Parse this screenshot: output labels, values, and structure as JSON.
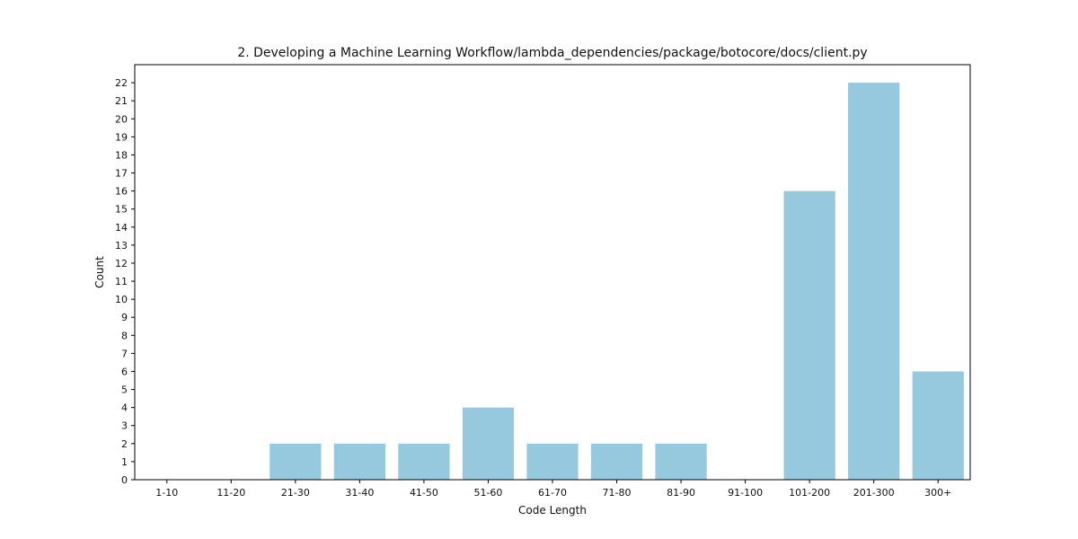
{
  "chart_data": {
    "type": "bar",
    "title": "2. Developing a Machine Learning Workflow/lambda_dependencies/package/botocore/docs/client.py",
    "xlabel": "Code Length",
    "ylabel": "Count",
    "categories": [
      "1-10",
      "11-20",
      "21-30",
      "31-40",
      "41-50",
      "51-60",
      "61-70",
      "71-80",
      "81-90",
      "91-100",
      "101-200",
      "201-300",
      "300+"
    ],
    "values": [
      0,
      0,
      2,
      2,
      2,
      4,
      2,
      2,
      2,
      0,
      16,
      22,
      6
    ],
    "ylim": [
      0,
      23
    ],
    "yticks": [
      0,
      1,
      2,
      3,
      4,
      5,
      6,
      7,
      8,
      9,
      10,
      11,
      12,
      13,
      14,
      15,
      16,
      17,
      18,
      19,
      20,
      21,
      22
    ],
    "grid": false,
    "bar_color": "#96c9de"
  }
}
